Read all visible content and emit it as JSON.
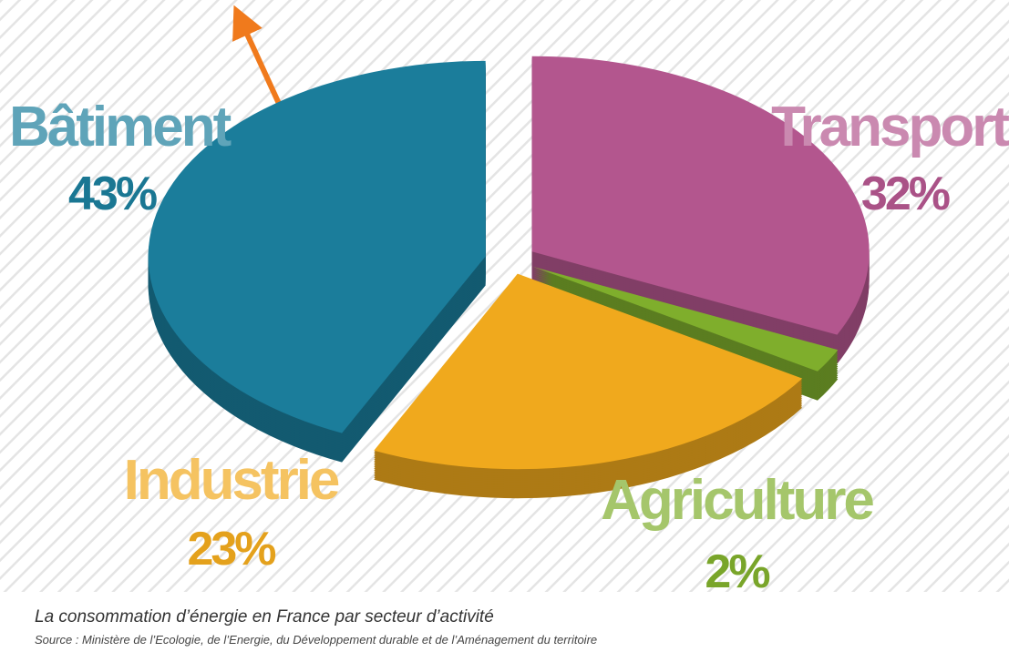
{
  "chart_data": {
    "type": "pie",
    "categories": [
      "Bâtiment",
      "Transport",
      "Agriculture",
      "Industrie"
    ],
    "values": [
      43,
      32,
      2,
      23
    ],
    "value_labels": [
      "43%",
      "32%",
      "2%",
      "23%"
    ],
    "colors": [
      "#1b7d9b",
      "#b3568e",
      "#7fae2c",
      "#f0a91d"
    ],
    "caption": "La consommation d’énergie en France par secteur d’activité",
    "source": "Source : Ministère de l’Ecologie, de l’Energie, du Développement durable et de l’Aménagement du territoire"
  }
}
